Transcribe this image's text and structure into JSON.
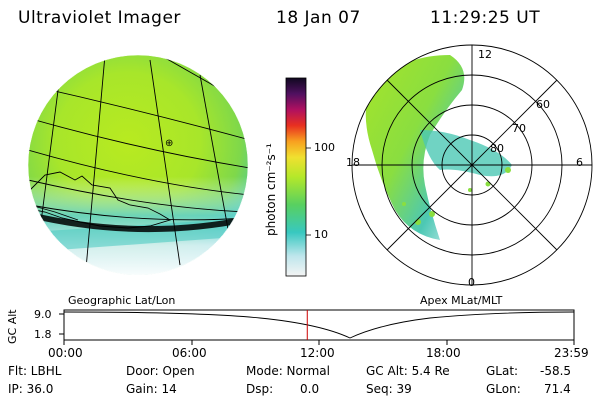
{
  "header": {
    "instrument": "Ultraviolet Imager",
    "date": "18 Jan 07",
    "time": "11:29:25 UT"
  },
  "colorbar": {
    "label": "photon cm⁻²s⁻¹",
    "ticks": [
      "100",
      "10"
    ]
  },
  "polar": {
    "mlt_labels": {
      "top": "12",
      "left": "18",
      "right": "6",
      "bottom": "0"
    },
    "lat_labels": [
      "60",
      "70",
      "80"
    ]
  },
  "projections": {
    "left": "Geographic Lat/Lon",
    "right": "Apex MLat/MLT"
  },
  "timeline": {
    "ylabel": "GC Alt",
    "y_ticks": [
      "9.0",
      "1.8"
    ],
    "x_ticks": [
      "00:00",
      "06:00",
      "12:00",
      "18:00",
      "23:59"
    ],
    "current_time_fraction": 0.477
  },
  "info": {
    "flt": "Flt: LBHL",
    "ip": "IP: 36.0",
    "door": "Door: Open",
    "gain": "Gain: 14",
    "mode": "Mode: Normal",
    "dsp_label": "Dsp:",
    "dsp_value": "0.0",
    "gc_alt": "GC Alt: 5.4 Re",
    "seq": "Seq: 39",
    "glat_label": "GLat:",
    "glat_value": "-58.5",
    "glon_label": "GLon:",
    "glon_value": "71.4"
  },
  "colors": {
    "red_marker": "#cc0000",
    "green": "#aaee22",
    "cyan": "#33ccbb"
  }
}
